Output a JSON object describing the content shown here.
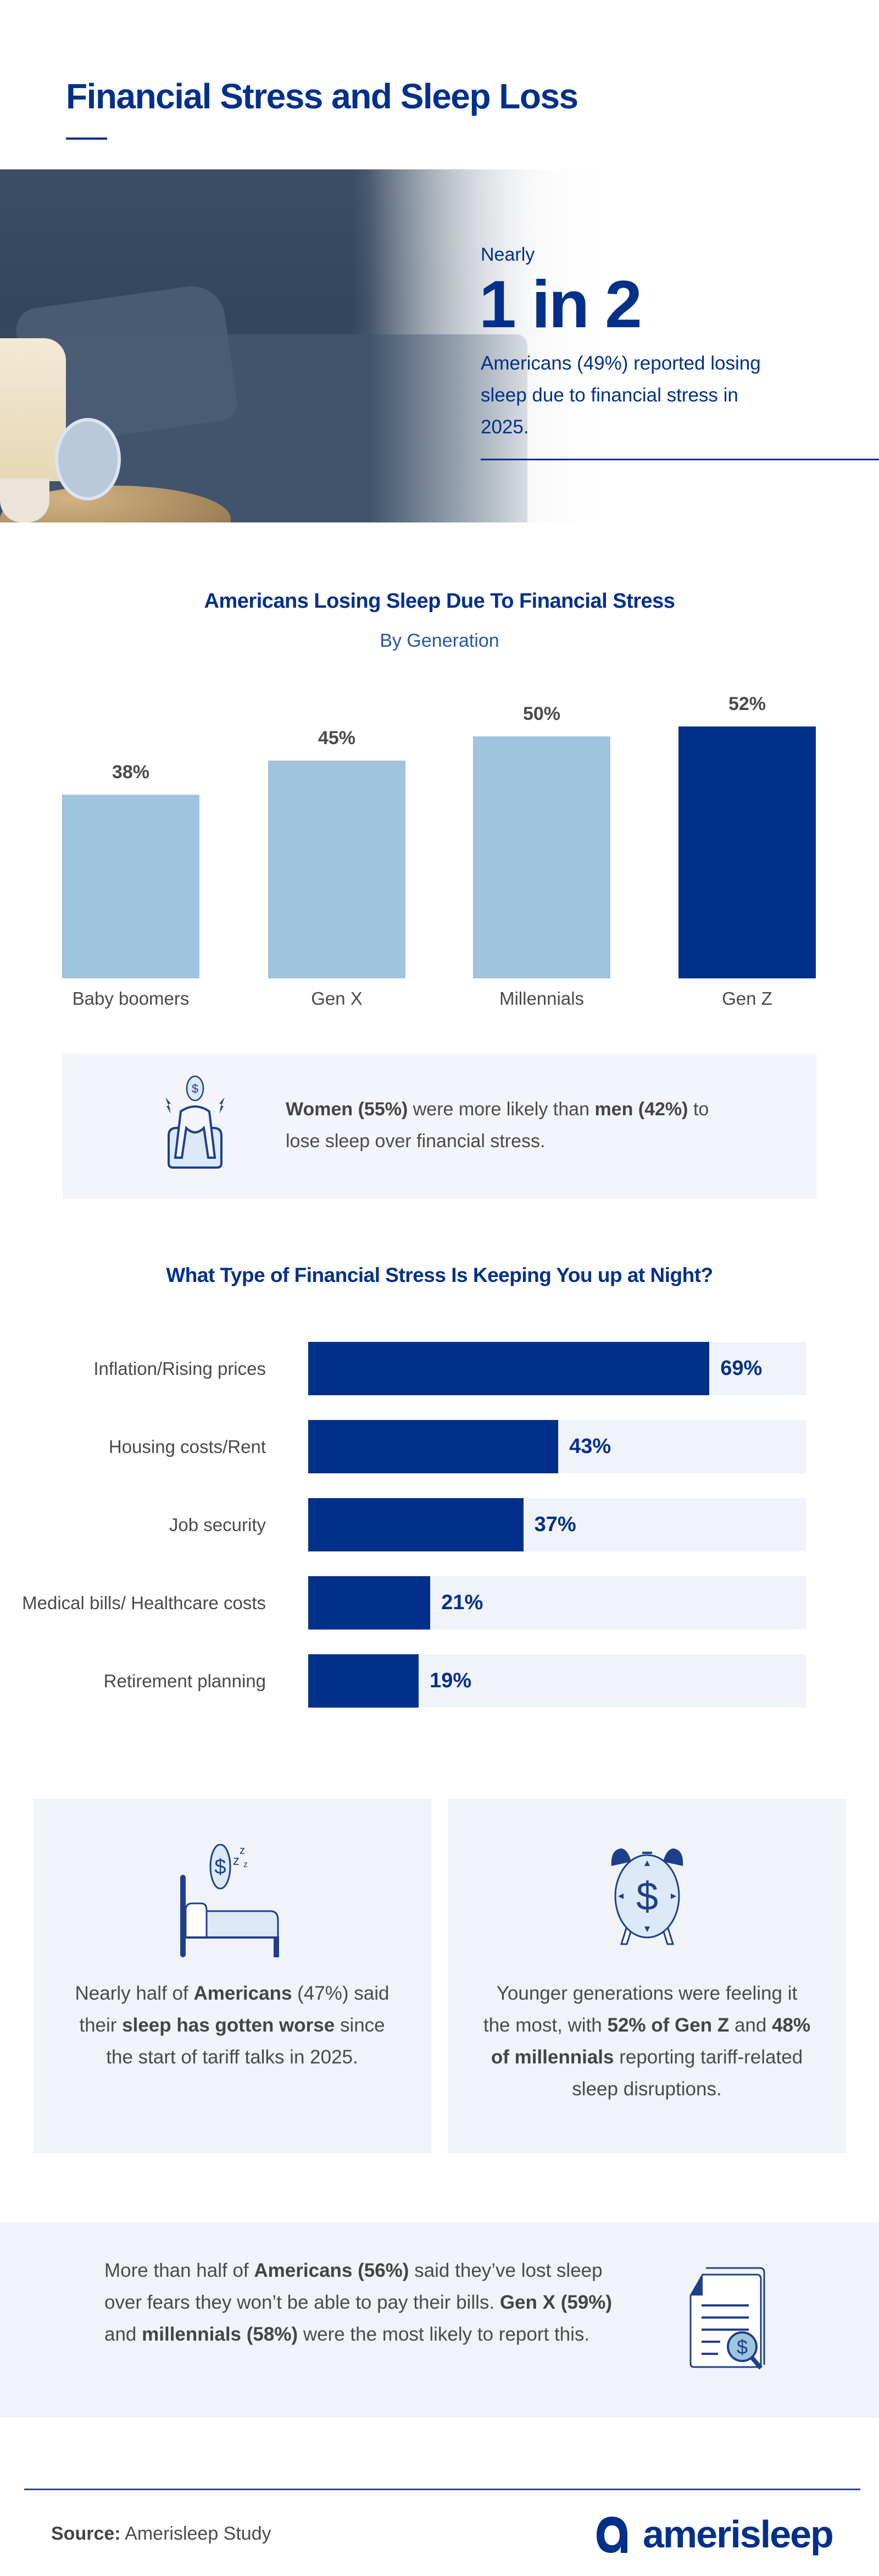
{
  "header": {
    "title": "Financial Stress and Sleep Loss"
  },
  "hero": {
    "kicker": "Nearly",
    "stat": "1 in 2",
    "description": "Americans (49%) reported losing sleep due to financial stress in 2025."
  },
  "colors": {
    "navy": "#00308a",
    "light_bar": "#a0c3de",
    "panel": "#f0f4f9",
    "text": "#4a4a4a"
  },
  "chart_data": [
    {
      "type": "bar",
      "title": "Americans Losing Sleep Due To Financial Stress",
      "subtitle": "By Generation",
      "categories": [
        "Baby boomers",
        "Gen X",
        "Millennials",
        "Gen Z"
      ],
      "values": [
        38,
        45,
        50,
        52
      ],
      "value_labels": [
        "38%",
        "45%",
        "50%",
        "52%"
      ],
      "highlight": [
        false,
        false,
        false,
        true
      ],
      "ylim": [
        0,
        60
      ],
      "grid": false
    },
    {
      "type": "bar",
      "orientation": "horizontal",
      "title": "What Type of Financial Stress Is Keeping You up at Night?",
      "categories": [
        "Inflation/Rising prices",
        "Housing costs/Rent",
        "Job security",
        "Medical bills/ Healthcare costs",
        "Retirement planning"
      ],
      "values": [
        69,
        43,
        37,
        21,
        19
      ],
      "value_labels": [
        "69%",
        "43%",
        "37%",
        "21%",
        "19%"
      ],
      "xlim": [
        0,
        85.7
      ],
      "grid": false
    }
  ],
  "callouts": {
    "gender": {
      "icon": "stressed-person-money-icon",
      "parts": [
        {
          "text": "Women (55%)",
          "bold": true
        },
        {
          "text": " were more likely than ",
          "bold": false
        },
        {
          "text": "men (42%)",
          "bold": true
        },
        {
          "text": " to lose sleep over financial stress.",
          "bold": false
        }
      ]
    },
    "worse_sleep": {
      "icon": "bed-money-icon",
      "parts": [
        {
          "text": "Nearly half of ",
          "bold": false
        },
        {
          "text": "Americans",
          "bold": true
        },
        {
          "text": " (47%) said their ",
          "bold": false
        },
        {
          "text": "sleep has gotten worse",
          "bold": true
        },
        {
          "text": " since the start of tariff talks in 2025.",
          "bold": false
        }
      ]
    },
    "younger": {
      "icon": "alarm-clock-money-icon",
      "parts": [
        {
          "text": "Younger generations were feeling it the most, with ",
          "bold": false
        },
        {
          "text": "52% of Gen Z",
          "bold": true
        },
        {
          "text": " and ",
          "bold": false
        },
        {
          "text": "48% of millennials",
          "bold": true
        },
        {
          "text": " reporting tariff-related sleep disruptions.",
          "bold": false
        }
      ]
    },
    "bills": {
      "icon": "bill-magnifier-icon",
      "parts": [
        {
          "text": "More than half of ",
          "bold": false
        },
        {
          "text": "Americans (56%)",
          "bold": true
        },
        {
          "text": " said they’ve lost sleep over fears they won’t be able to pay their bills. ",
          "bold": false
        },
        {
          "text": "Gen X (59%)",
          "bold": true
        },
        {
          "text": " and ",
          "bold": false
        },
        {
          "text": "millennials (58%)",
          "bold": true
        },
        {
          "text": " were the most likely to report this.",
          "bold": false
        }
      ]
    }
  },
  "footer": {
    "source_label": "Source:",
    "source_value": " Amerisleep Study",
    "brand": "amerisleep"
  }
}
